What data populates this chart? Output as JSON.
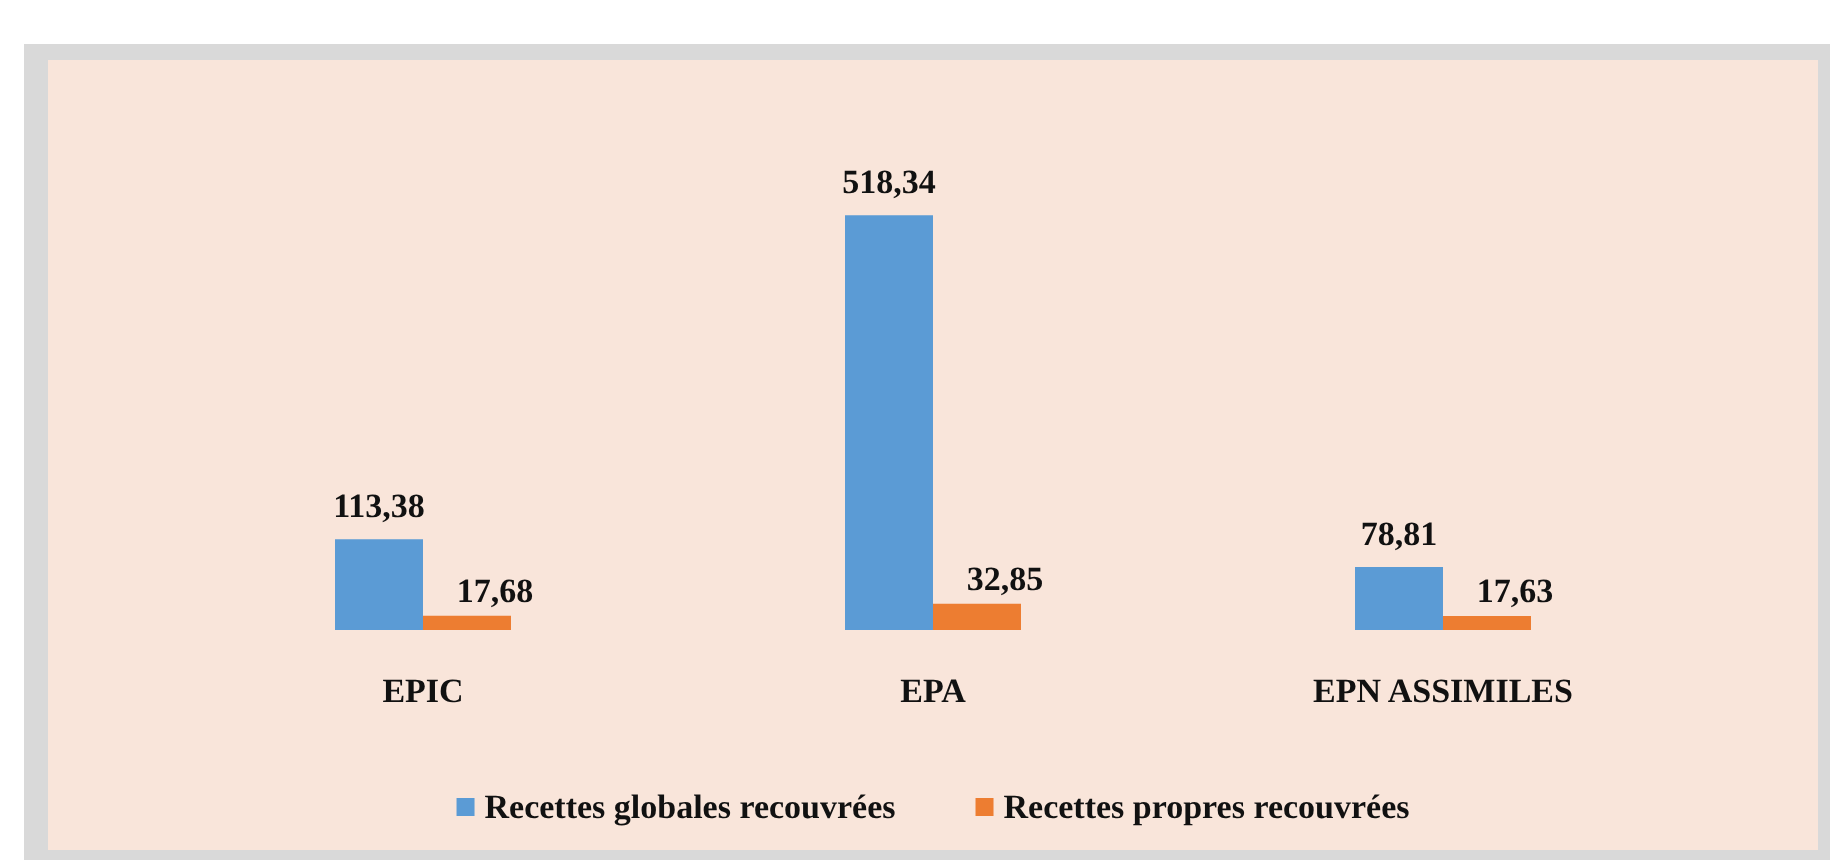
{
  "chart_data": {
    "type": "bar",
    "categories": [
      "EPIC",
      "EPA",
      "EPN ASSIMILES"
    ],
    "series": [
      {
        "name": "Recettes globales recouvrées",
        "color": "#5b9bd5",
        "values": [
          113.38,
          518.34,
          78.81
        ],
        "value_labels": [
          "113,38",
          "518,34",
          "78,81"
        ]
      },
      {
        "name": "Recettes propres recouvrées",
        "color": "#ed7d31",
        "values": [
          17.68,
          32.85,
          17.63
        ],
        "value_labels": [
          "17,68",
          "32,85",
          "17,63"
        ]
      }
    ],
    "legend": "bottom"
  }
}
